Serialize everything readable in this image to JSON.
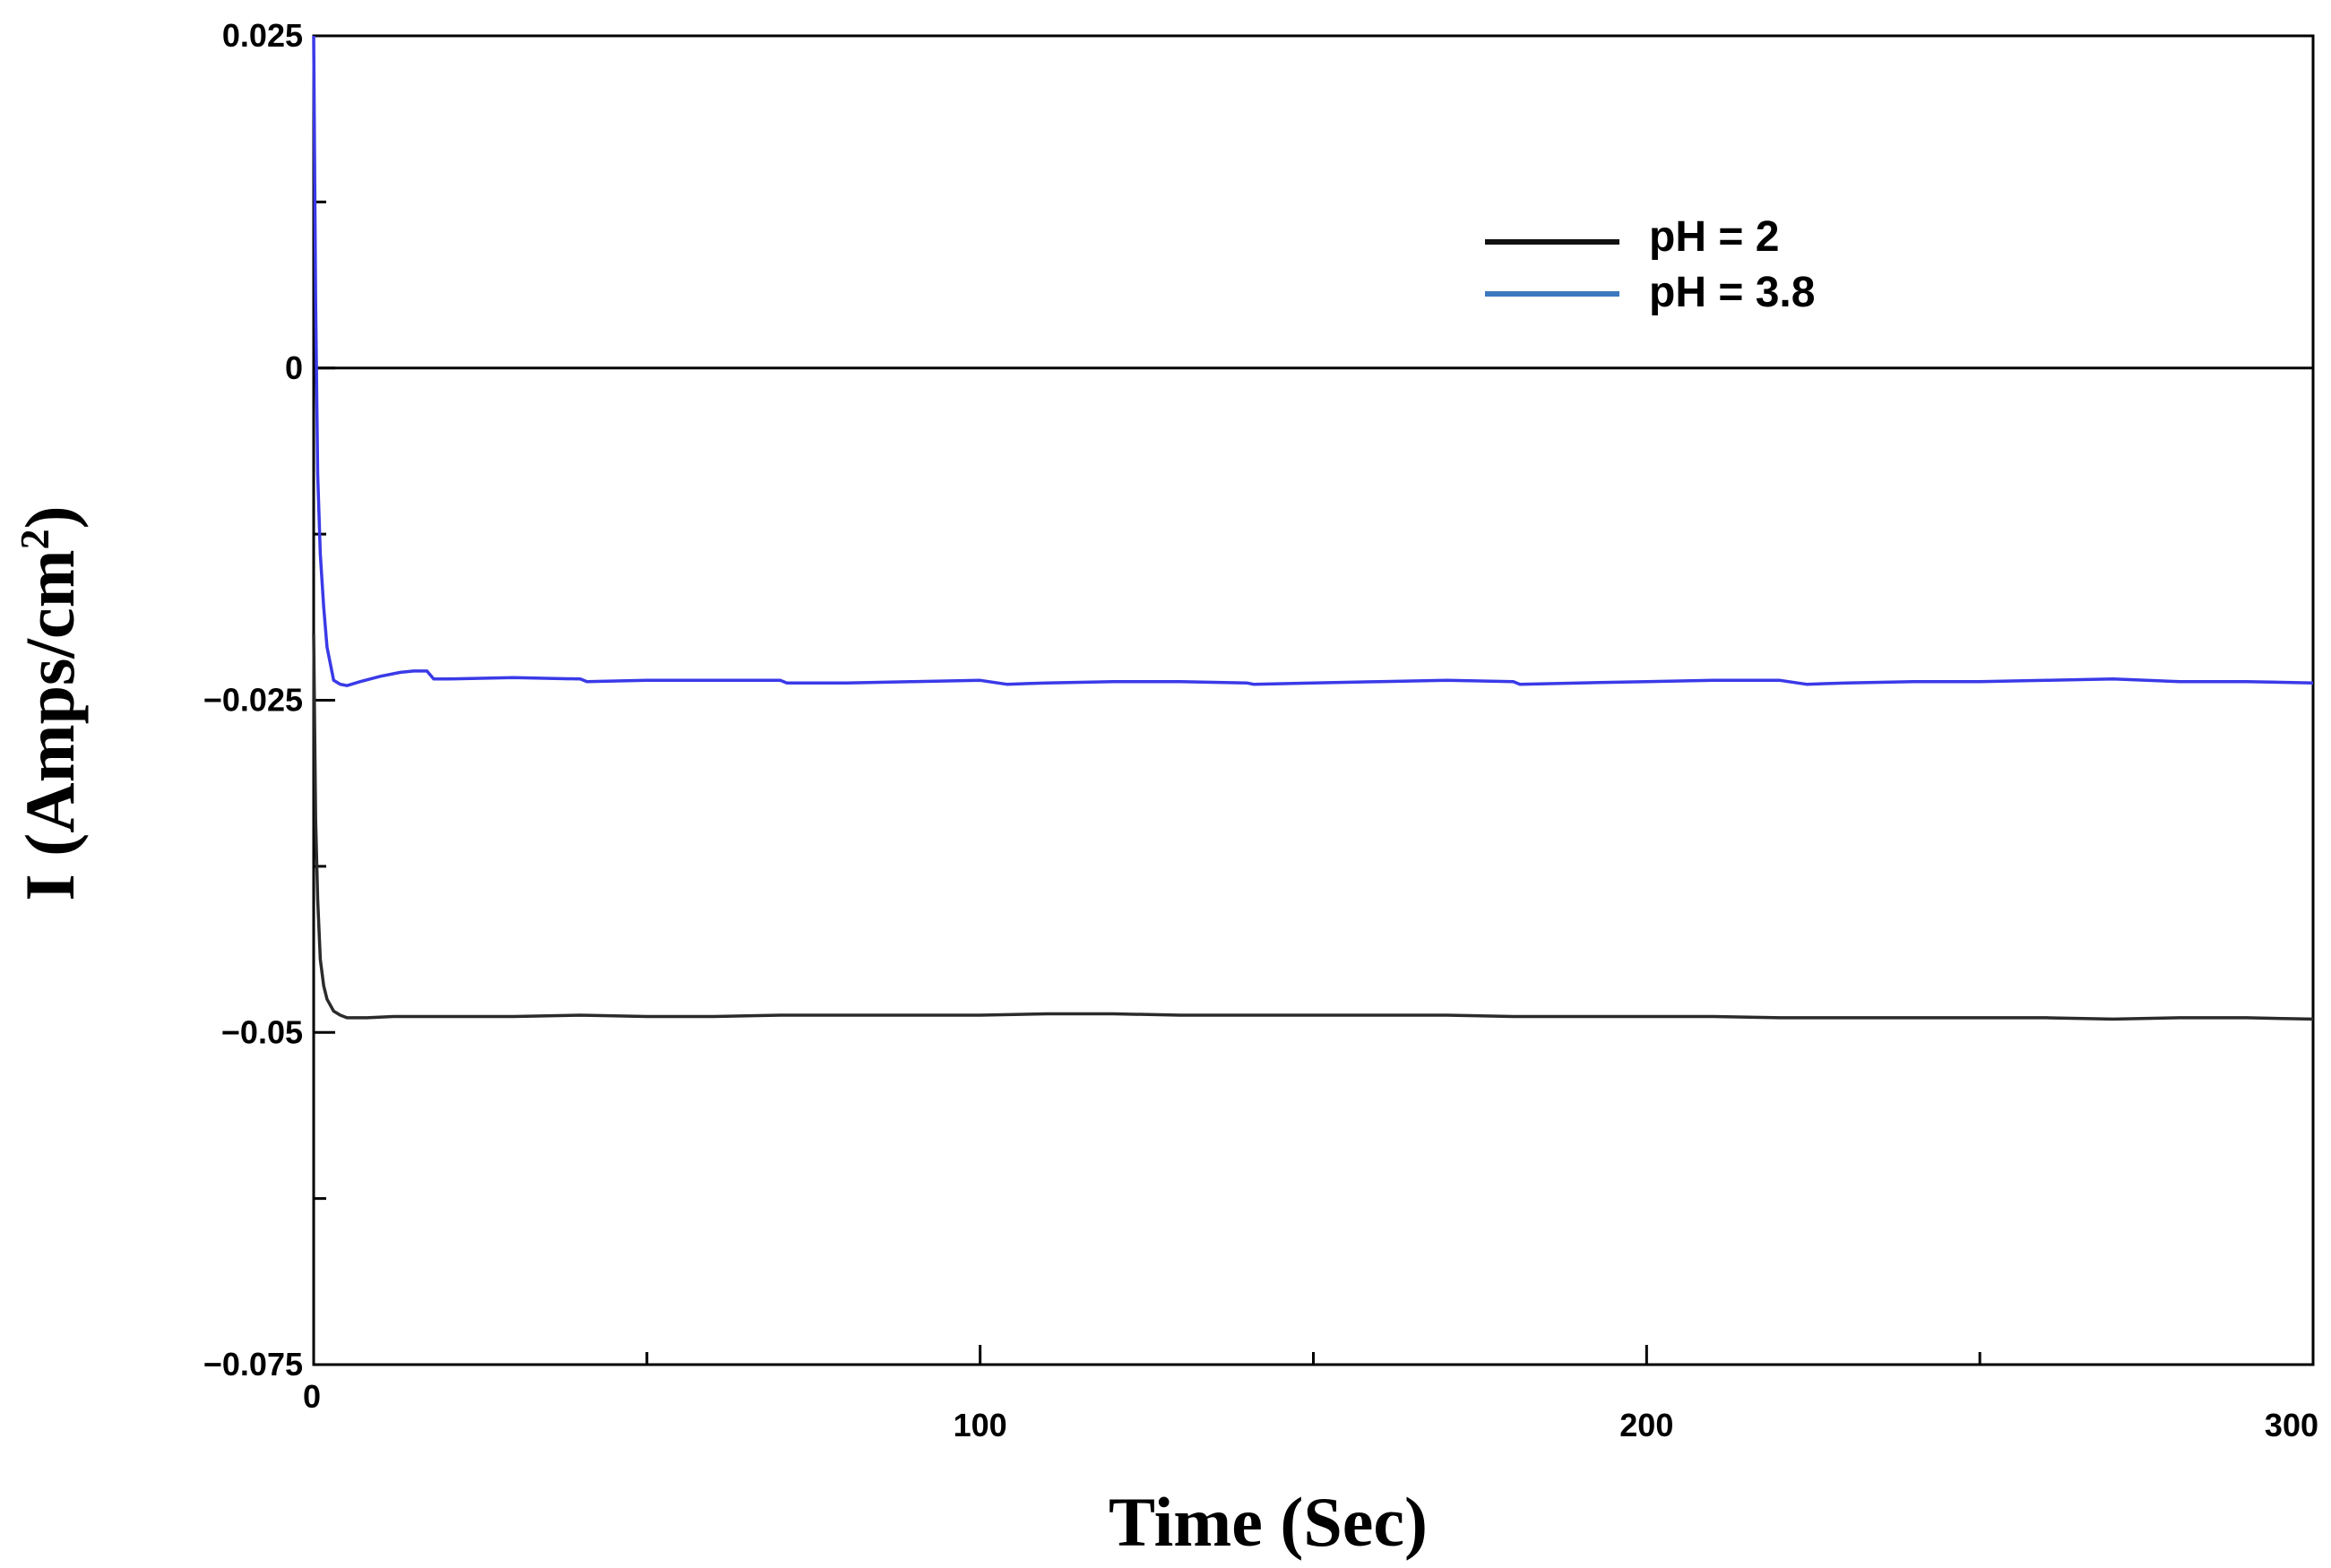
{
  "chart_data": {
    "type": "line",
    "xlabel": "Time (Sec)",
    "ylabel": "I (Amps/cm",
    "ylabel_superscript": "2",
    "ylabel_suffix": ")",
    "xlim": [
      0,
      300
    ],
    "ylim": [
      -0.075,
      0.025
    ],
    "x_ticks": [
      0,
      100,
      200,
      300
    ],
    "x_tick_labels": [
      "0",
      "100",
      "200",
      "300"
    ],
    "x_minor_ticks": [
      50,
      150,
      250
    ],
    "y_ticks": [
      0.025,
      0,
      -0.025,
      -0.05,
      -0.075
    ],
    "y_tick_labels": [
      "0.025",
      "0",
      "−0.025",
      "−0.05",
      "−0.075"
    ],
    "y_minor_ticks": [
      0.0125,
      -0.0125,
      -0.0375,
      -0.0625
    ],
    "zero_line": true,
    "grid": false,
    "legend_position": "top-right",
    "series": [
      {
        "name": "pH = 2",
        "color": "#2b2b2b",
        "legend_color": "#111111",
        "x": [
          0,
          0.3,
          0.6,
          1,
          1.5,
          2,
          3,
          4,
          5,
          8,
          12,
          20,
          30,
          40,
          50,
          60,
          70,
          80,
          90,
          100,
          110,
          120,
          130,
          140,
          150,
          160,
          170,
          180,
          190,
          200,
          210,
          220,
          230,
          240,
          250,
          260,
          270,
          280,
          290,
          300
        ],
        "y": [
          -0.02,
          -0.034,
          -0.04,
          -0.0445,
          -0.0465,
          -0.0475,
          -0.0484,
          -0.0487,
          -0.0489,
          -0.0489,
          -0.0488,
          -0.0488,
          -0.0488,
          -0.0487,
          -0.0488,
          -0.0488,
          -0.0487,
          -0.0487,
          -0.0487,
          -0.0487,
          -0.0486,
          -0.0486,
          -0.0487,
          -0.0487,
          -0.0487,
          -0.0487,
          -0.0487,
          -0.0488,
          -0.0488,
          -0.0488,
          -0.0488,
          -0.0489,
          -0.0489,
          -0.0489,
          -0.0489,
          -0.0489,
          -0.049,
          -0.0489,
          -0.0489,
          -0.049
        ]
      },
      {
        "name": "pH = 3.8",
        "color": "#3a3ae8",
        "legend_color": "#3c78c0",
        "x": [
          0,
          0.3,
          0.6,
          1,
          1.5,
          2,
          3,
          4,
          5,
          7,
          10,
          13,
          15,
          17,
          18,
          20,
          30,
          40,
          41,
          50,
          60,
          70,
          71,
          80,
          90,
          100,
          104,
          110,
          120,
          130,
          140,
          141,
          150,
          160,
          170,
          180,
          181,
          190,
          200,
          210,
          220,
          224,
          230,
          240,
          250,
          260,
          270,
          275,
          280,
          290,
          300
        ],
        "y": [
          0.025,
          0.005,
          -0.008,
          -0.014,
          -0.018,
          -0.021,
          -0.0235,
          -0.0238,
          -0.0239,
          -0.0236,
          -0.0232,
          -0.0229,
          -0.0228,
          -0.0228,
          -0.0234,
          -0.0234,
          -0.0233,
          -0.0234,
          -0.0236,
          -0.0235,
          -0.0235,
          -0.0235,
          -0.0237,
          -0.0237,
          -0.0236,
          -0.0235,
          -0.0238,
          -0.0237,
          -0.0236,
          -0.0236,
          -0.0237,
          -0.0238,
          -0.0237,
          -0.0236,
          -0.0235,
          -0.0236,
          -0.0238,
          -0.0237,
          -0.0236,
          -0.0235,
          -0.0235,
          -0.0238,
          -0.0237,
          -0.0236,
          -0.0236,
          -0.0235,
          -0.0234,
          -0.0235,
          -0.0236,
          -0.0236,
          -0.0237
        ]
      }
    ]
  }
}
